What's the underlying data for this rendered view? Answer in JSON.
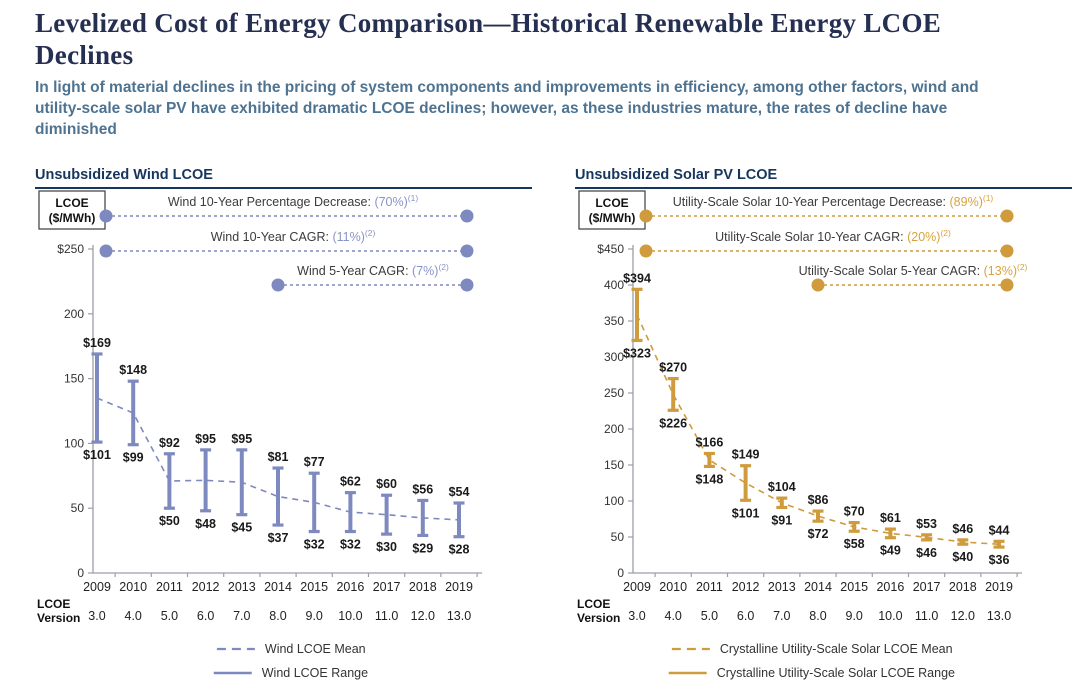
{
  "header": {
    "title": "Levelized Cost of Energy Comparison—Historical Renewable Energy LCOE Declines",
    "subtitle": "In light of material declines in the pricing of system components and improvements in efficiency, among other factors, wind and utility-scale solar PV have exhibited dramatic LCOE declines; however, as these industries mature, the rates of decline have diminished"
  },
  "panels": [
    {
      "title": "Unsubsidized Wind LCOE",
      "y_axis_box": {
        "line1": "LCOE",
        "line2": "($/MWh)"
      },
      "accent": "#7e89bf",
      "value_accent": "#8a94c9",
      "annotations": [
        {
          "label": "Wind 10-Year Percentage Decrease: ",
          "value": "(70%)",
          "footnote": "(1)",
          "span": "full"
        },
        {
          "label": "Wind 10-Year CAGR: ",
          "value": "(11%)",
          "footnote": "(2)",
          "span": "full"
        },
        {
          "label": "Wind 5-Year CAGR: ",
          "value": "(7%)",
          "footnote": "(2)",
          "span": "5yr"
        }
      ],
      "version_label": {
        "line1": "LCOE",
        "line2": "Version"
      }
    },
    {
      "title": "Unsubsidized Solar PV LCOE",
      "y_axis_box": {
        "line1": "LCOE",
        "line2": "($/MWh)"
      },
      "accent": "#cf9b3c",
      "value_accent": "#d8a33f",
      "annotations": [
        {
          "label": "Utility-Scale Solar 10-Year Percentage Decrease: ",
          "value": "(89%)",
          "footnote": "(1)",
          "span": "full"
        },
        {
          "label": "Utility-Scale Solar 10-Year CAGR: ",
          "value": "(20%)",
          "footnote": "(2)",
          "span": "full"
        },
        {
          "label": "Utility-Scale Solar 5-Year CAGR: ",
          "value": "(13%)",
          "footnote": "(2)",
          "span": "5yr"
        }
      ],
      "version_label": {
        "line1": "LCOE",
        "line2": "Version"
      }
    }
  ],
  "chart_data": [
    {
      "type": "line",
      "subtype": "range-errorbars-with-dashed-mean",
      "title": "Unsubsidized Wind LCOE",
      "categories": [
        "2009",
        "2010",
        "2011",
        "2012",
        "2013",
        "2014",
        "2015",
        "2016",
        "2017",
        "2018",
        "2019"
      ],
      "lcoe_version": [
        "3.0",
        "4.0",
        "5.0",
        "6.0",
        "7.0",
        "8.0",
        "9.0",
        "10.0",
        "11.0",
        "12.0",
        "13.0"
      ],
      "series": [
        {
          "name": "Wind LCOE Range high ($/MWh)",
          "values": [
            169,
            148,
            92,
            95,
            95,
            81,
            77,
            62,
            60,
            56,
            54
          ]
        },
        {
          "name": "Wind LCOE Range low ($/MWh)",
          "values": [
            101,
            99,
            50,
            48,
            45,
            37,
            32,
            32,
            30,
            29,
            28
          ]
        }
      ],
      "mean_rule": "midpoint of range (dashed line)",
      "ylabel": "LCOE ($/MWh)",
      "ylim": [
        0,
        250
      ],
      "ytick_step": 50,
      "ytick_top_label": "$250",
      "grid": false,
      "legend": [
        "Wind LCOE Mean",
        "Wind LCOE Range"
      ],
      "legend_position": "bottom"
    },
    {
      "type": "line",
      "subtype": "range-errorbars-with-dashed-mean",
      "title": "Unsubsidized Solar PV LCOE",
      "categories": [
        "2009",
        "2010",
        "2011",
        "2012",
        "2013",
        "2014",
        "2015",
        "2016",
        "2017",
        "2018",
        "2019"
      ],
      "lcoe_version": [
        "3.0",
        "4.0",
        "5.0",
        "6.0",
        "7.0",
        "8.0",
        "9.0",
        "10.0",
        "11.0",
        "12.0",
        "13.0"
      ],
      "series": [
        {
          "name": "Crystalline Utility-Scale Solar LCOE Range high ($/MWh)",
          "values": [
            394,
            270,
            166,
            149,
            104,
            86,
            70,
            61,
            53,
            46,
            44
          ]
        },
        {
          "name": "Crystalline Utility-Scale Solar LCOE Range low ($/MWh)",
          "values": [
            323,
            226,
            148,
            101,
            91,
            72,
            58,
            49,
            46,
            40,
            36
          ]
        }
      ],
      "mean_rule": "midpoint of range (dashed line)",
      "ylabel": "LCOE ($/MWh)",
      "ylim": [
        0,
        450
      ],
      "ytick_step": 50,
      "ytick_top_label": "$450",
      "grid": false,
      "legend": [
        "Crystalline Utility-Scale Solar LCOE Mean",
        "Crystalline Utility-Scale Solar LCOE Range"
      ],
      "legend_position": "bottom"
    }
  ]
}
